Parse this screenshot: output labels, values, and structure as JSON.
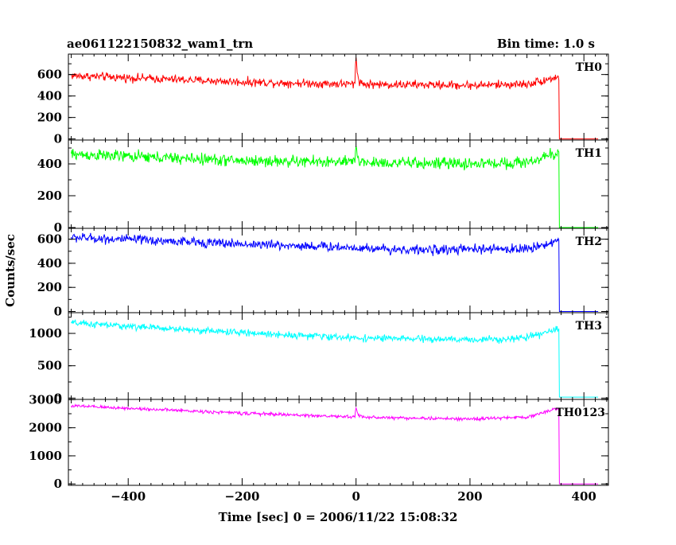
{
  "header": {
    "title": "ae061122150832_wam1_trn",
    "bin_time": "Bin time: 1.0 s"
  },
  "chart_data": {
    "type": "line",
    "title": "ae061122150832_wam1_trn",
    "subtitle": "Bin time: 1.0 s",
    "xlabel": "Time [sec] 0 = 2006/11/22 15:08:32",
    "ylabel": "Counts/sec",
    "xlim": [
      -505,
      443
    ],
    "x_ticks": [
      -400,
      -200,
      0,
      200,
      400
    ],
    "x_tick_labels": [
      "−400",
      "−200",
      "0",
      "200",
      "400"
    ],
    "cutoff_time": 357,
    "x_end": 425,
    "burst_time": 0,
    "grid": false,
    "series": [
      {
        "name": "TH0",
        "color": "#ff0000",
        "ylim": [
          -10,
          790
        ],
        "y_ticks": [
          0,
          200,
          400,
          600
        ],
        "y_tick_labels": [
          "0",
          "200",
          "400",
          "600"
        ],
        "baseline_x": [
          -500,
          -200,
          0,
          200,
          300,
          357
        ],
        "baseline_y": [
          590,
          530,
          510,
          500,
          510,
          580
        ],
        "noise": 30,
        "burst_peak": 250,
        "after_cutoff": 0
      },
      {
        "name": "TH1",
        "color": "#00ff00",
        "ylim": [
          -5,
          550
        ],
        "y_ticks": [
          0,
          200,
          400
        ],
        "y_tick_labels": [
          "0",
          "200",
          "400"
        ],
        "baseline_x": [
          -500,
          -200,
          0,
          200,
          300,
          357
        ],
        "baseline_y": [
          460,
          420,
          410,
          400,
          410,
          470
        ],
        "noise": 28,
        "burst_peak": 110,
        "after_cutoff": 0
      },
      {
        "name": "TH2",
        "color": "#0000ff",
        "ylim": [
          -10,
          690
        ],
        "y_ticks": [
          0,
          200,
          400,
          600
        ],
        "y_tick_labels": [
          "0",
          "200",
          "400",
          "600"
        ],
        "baseline_x": [
          -500,
          -200,
          0,
          100,
          300,
          357
        ],
        "baseline_y": [
          615,
          560,
          530,
          510,
          520,
          590
        ],
        "noise": 30,
        "burst_peak": 0,
        "after_cutoff": 0
      },
      {
        "name": "TH3",
        "color": "#00ffff",
        "ylim": [
          -20,
          1320
        ],
        "y_ticks": [
          0,
          500,
          1000
        ],
        "y_tick_labels": [
          "0",
          "500",
          "1000"
        ],
        "baseline_x": [
          -500,
          -200,
          0,
          200,
          300,
          357
        ],
        "baseline_y": [
          1160,
          1010,
          930,
          900,
          930,
          1070
        ],
        "noise": 40,
        "burst_peak": 0,
        "after_cutoff": 15
      },
      {
        "name": "TH0123",
        "color": "#ff00ff",
        "ylim": [
          -50,
          3010
        ],
        "y_ticks": [
          0,
          1000,
          2000,
          3000
        ],
        "y_tick_labels": [
          "0",
          "1000",
          "2000",
          "3000"
        ],
        "baseline_x": [
          -500,
          -200,
          0,
          200,
          300,
          357
        ],
        "baseline_y": [
          2780,
          2520,
          2380,
          2310,
          2380,
          2700
        ],
        "noise": 45,
        "burst_peak": 380,
        "after_cutoff": 0
      }
    ]
  }
}
